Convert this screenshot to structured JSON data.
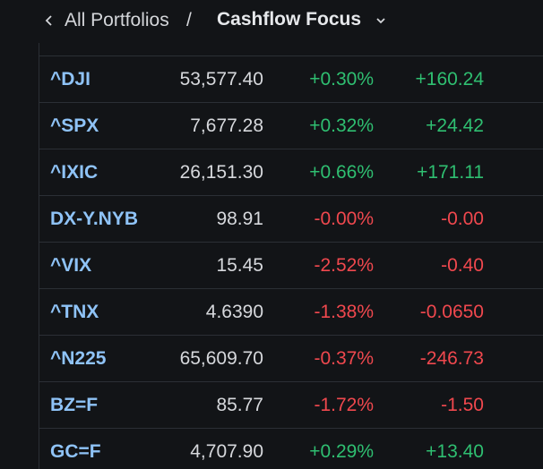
{
  "breadcrumb": {
    "parent_label": "All Portfolios",
    "separator": "/",
    "current_label": "Cashflow Focus",
    "back_icon": "chevron-left-icon",
    "dropdown_icon": "chevron-down-icon"
  },
  "colors": {
    "background": "#121417",
    "symbol": "#8fc3f7",
    "positive": "#2fbf71",
    "negative": "#f0484e",
    "text": "#d6d8dc",
    "divider": "#2b2f35"
  },
  "rows": [
    {
      "symbol": "^DJI",
      "price": "53,577.40",
      "change_pct": "+0.30%",
      "change": "+160.24",
      "direction": "pos"
    },
    {
      "symbol": "^SPX",
      "price": "7,677.28",
      "change_pct": "+0.32%",
      "change": "+24.42",
      "direction": "pos"
    },
    {
      "symbol": "^IXIC",
      "price": "26,151.30",
      "change_pct": "+0.66%",
      "change": "+171.11",
      "direction": "pos"
    },
    {
      "symbol": "DX-Y.NYB",
      "price": "98.91",
      "change_pct": "-0.00%",
      "change": "-0.00",
      "direction": "neg"
    },
    {
      "symbol": "^VIX",
      "price": "15.45",
      "change_pct": "-2.52%",
      "change": "-0.40",
      "direction": "neg"
    },
    {
      "symbol": "^TNX",
      "price": "4.6390",
      "change_pct": "-1.38%",
      "change": "-0.0650",
      "direction": "neg"
    },
    {
      "symbol": "^N225",
      "price": "65,609.70",
      "change_pct": "-0.37%",
      "change": "-246.73",
      "direction": "neg"
    },
    {
      "symbol": "BZ=F",
      "price": "85.77",
      "change_pct": "-1.72%",
      "change": "-1.50",
      "direction": "neg"
    },
    {
      "symbol": "GC=F",
      "price": "4,707.90",
      "change_pct": "+0.29%",
      "change": "+13.40",
      "direction": "pos"
    }
  ]
}
